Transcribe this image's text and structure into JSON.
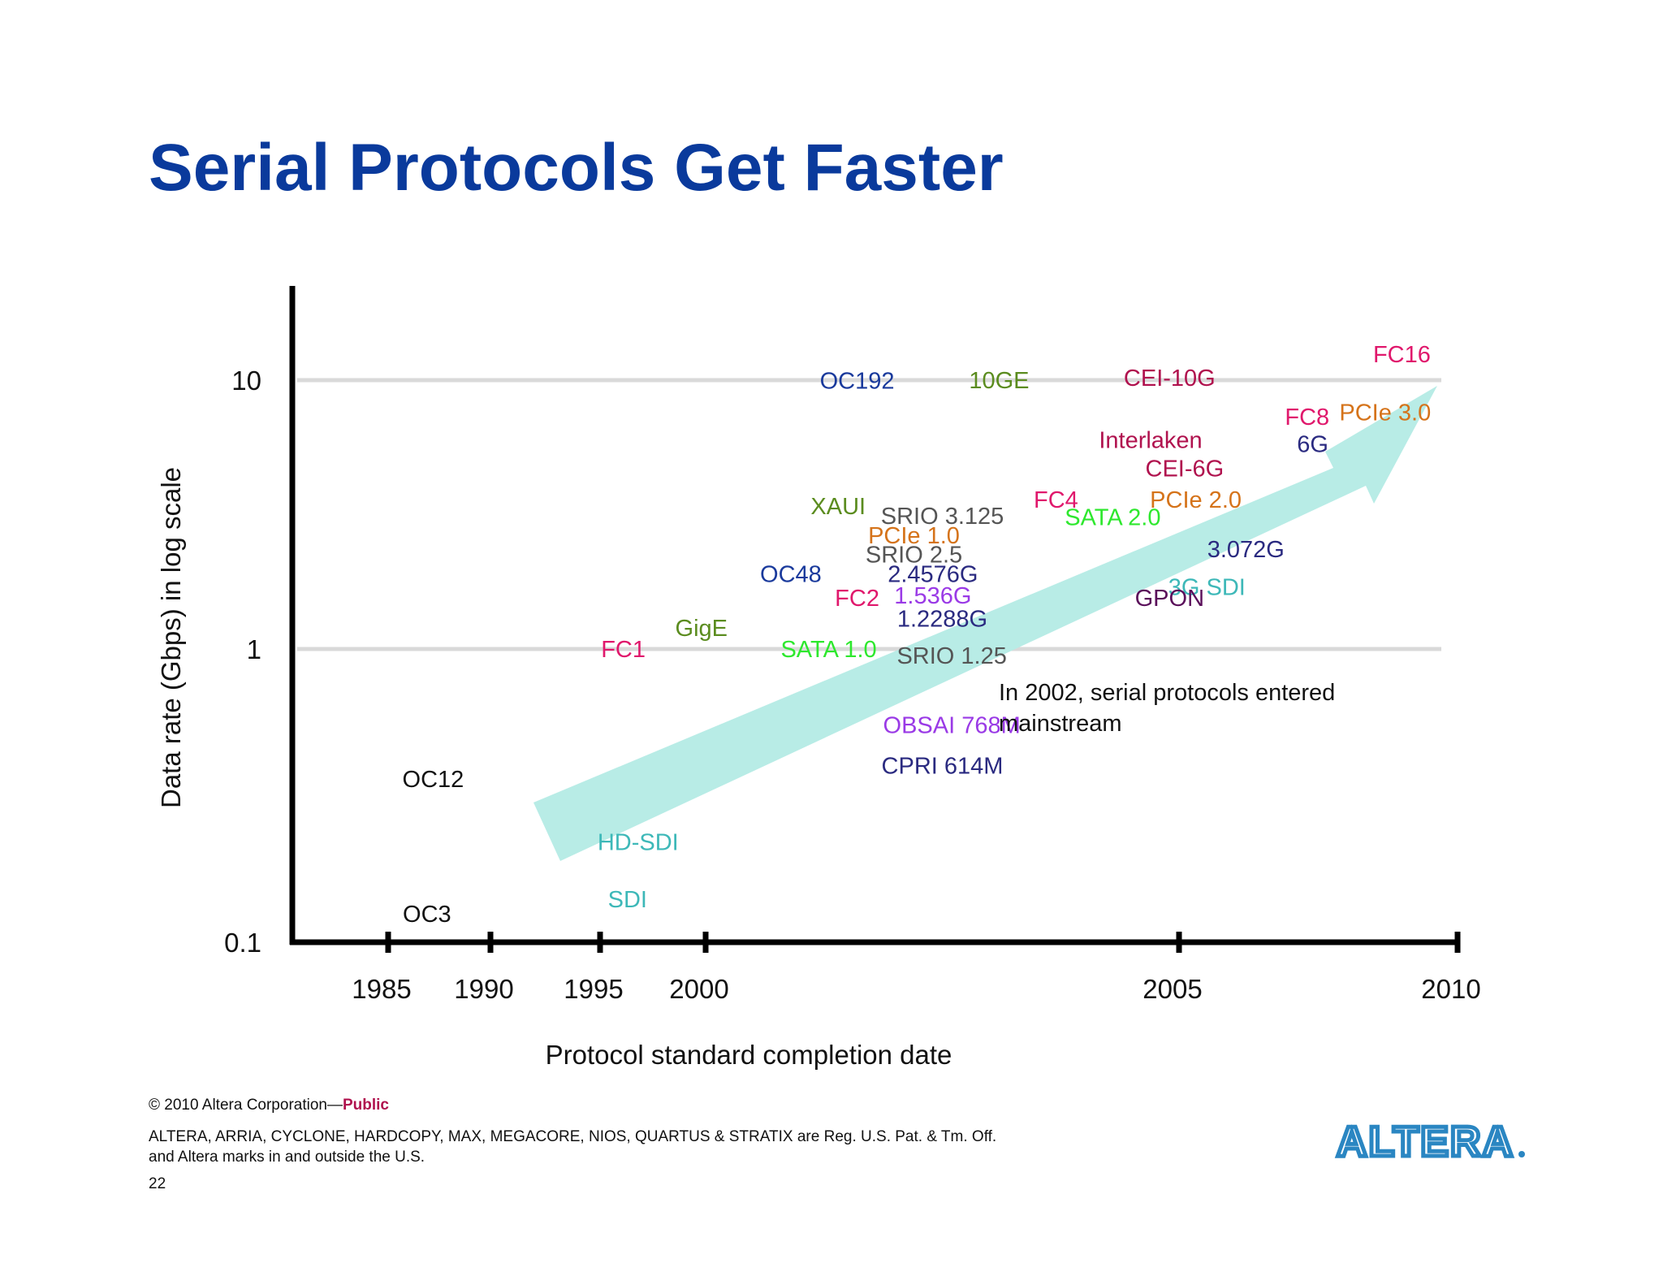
{
  "title": "Serial Protocols Get Faster",
  "chart_data": {
    "type": "scatter",
    "xlabel": "Protocol standard completion date",
    "ylabel": "Data rate (Gbps) in log scale",
    "y_scale": "log",
    "ylim": [
      0.1,
      20
    ],
    "y_ticks": [
      {
        "value": 0.1,
        "label": "0.1"
      },
      {
        "value": 1,
        "label": "1"
      },
      {
        "value": 10,
        "label": "10"
      }
    ],
    "x_ticks": [
      "1985",
      "1990",
      "1995",
      "2000",
      "2005",
      "2010"
    ],
    "gridlines": [
      1,
      10
    ],
    "points": [
      {
        "label": "FC16",
        "x": 2009,
        "y": 12.5,
        "color": "#e0186c"
      },
      {
        "label": "OC192",
        "x": 2001.6,
        "y": 9.95,
        "color": "#1a3a9c"
      },
      {
        "label": "10GE",
        "x": 2003.1,
        "y": 10.0,
        "color": "#5b8c1f"
      },
      {
        "label": "CEI-10G",
        "x": 2004.9,
        "y": 10.2,
        "color": "#b0124e"
      },
      {
        "label": "FC8",
        "x": 2007.3,
        "y": 7.3,
        "color": "#e0186c"
      },
      {
        "label": "PCIe 3.0",
        "x": 2008.7,
        "y": 7.6,
        "color": "#d5731a"
      },
      {
        "label": "Interlaken",
        "x": 2004.7,
        "y": 6.0,
        "color": "#b0124e"
      },
      {
        "label": "6G",
        "x": 2007.4,
        "y": 5.8,
        "color": "#2a2a80"
      },
      {
        "label": "CEI-6G",
        "x": 2005.1,
        "y": 4.7,
        "color": "#b0124e"
      },
      {
        "label": "XAUI",
        "x": 2001.4,
        "y": 3.4,
        "color": "#5b8c1f"
      },
      {
        "label": "FC4",
        "x": 2003.7,
        "y": 3.6,
        "color": "#e0186c"
      },
      {
        "label": "PCIe 2.0",
        "x": 2005.3,
        "y": 3.6,
        "color": "#d5731a"
      },
      {
        "label": "SRIO 3.125",
        "x": 2002.5,
        "y": 3.125,
        "color": "#555555"
      },
      {
        "label": "SATA 2.0",
        "x": 2004.3,
        "y": 3.1,
        "color": "#2ee82e"
      },
      {
        "label": "PCIe 1.0",
        "x": 2002.2,
        "y": 2.65,
        "color": "#d5731a"
      },
      {
        "label": "SRIO 2.5",
        "x": 2002.2,
        "y": 2.25,
        "color": "#555555"
      },
      {
        "label": "3.072G",
        "x": 2006.2,
        "y": 2.35,
        "color": "#2a2a80"
      },
      {
        "label": "OC48",
        "x": 2000.9,
        "y": 1.9,
        "color": "#1a3a9c"
      },
      {
        "label": "2.4576G",
        "x": 2002.4,
        "y": 1.9,
        "color": "#2a2a80"
      },
      {
        "label": "3G SDI",
        "x": 2005.5,
        "y": 1.7,
        "color": "#3db8b8"
      },
      {
        "label": "FC2",
        "x": 2001.6,
        "y": 1.55,
        "color": "#e0186c"
      },
      {
        "label": "1.536G",
        "x": 2002.4,
        "y": 1.58,
        "color": "#9a3ae6"
      },
      {
        "label": "GPON",
        "x": 2004.9,
        "y": 1.55,
        "color": "#5a0f5a"
      },
      {
        "label": "1.2288G",
        "x": 2002.5,
        "y": 1.3,
        "color": "#2a2a80"
      },
      {
        "label": "GigE",
        "x": 1999.8,
        "y": 1.2,
        "color": "#5b8c1f"
      },
      {
        "label": "FC1",
        "x": 1996.1,
        "y": 1.0,
        "color": "#e0186c"
      },
      {
        "label": "SATA 1.0",
        "x": 2001.3,
        "y": 1.0,
        "color": "#2ee82e"
      },
      {
        "label": "SRIO 1.25",
        "x": 2002.6,
        "y": 0.95,
        "color": "#555555"
      },
      {
        "label": "OBSAI 768M",
        "x": 2002.6,
        "y": 0.55,
        "color": "#9a3ae6"
      },
      {
        "label": "CPRI 614M",
        "x": 2002.5,
        "y": 0.4,
        "color": "#2a2a80"
      },
      {
        "label": "OC12",
        "x": 1987.2,
        "y": 0.36,
        "color": "#111111"
      },
      {
        "label": "HD-SDI",
        "x": 1996.8,
        "y": 0.22,
        "color": "#3db8b8"
      },
      {
        "label": "SDI",
        "x": 1996.3,
        "y": 0.14,
        "color": "#3db8b8"
      },
      {
        "label": "OC3",
        "x": 1986.9,
        "y": 0.125,
        "color": "#111111"
      }
    ],
    "annotation": "In 2002, serial  protocols entered mainstream",
    "trend_arrow_color": "#b8ece6",
    "axis_color": "#000000",
    "grid_color": "#d9d9d9"
  },
  "footer": {
    "copyright": "© 2010 Altera Corporation—",
    "public_label": "Public",
    "trademark_line1": "ALTERA, ARRIA, CYCLONE, HARDCOPY, MAX, MEGACORE, NIOS, QUARTUS & STRATIX are Reg. U.S. Pat. & Tm. Off.",
    "trademark_line2": "and Altera marks in and outside the U.S.",
    "page_number": "22"
  },
  "logo": {
    "text": "ALTERA",
    "color": "#2a86c2"
  }
}
